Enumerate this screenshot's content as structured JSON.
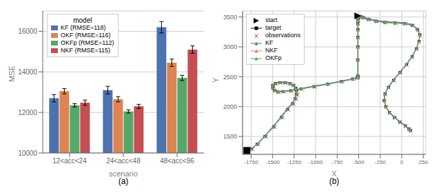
{
  "chart_data": [
    {
      "type": "bar",
      "xlabel": "scenario",
      "ylabel": "MSE",
      "categories": [
        "12<acc<24",
        "24<acc<48",
        "48<acc<96"
      ],
      "series": [
        {
          "name": "KF (RMSE=118)",
          "color": "#4C72B0",
          "values": [
            12700,
            13100,
            16200
          ],
          "errors": [
            180,
            190,
            280
          ]
        },
        {
          "name": "OKF (RMSE=116)",
          "color": "#DD8452",
          "values": [
            13050,
            12650,
            14450
          ],
          "errors": [
            130,
            130,
            180
          ]
        },
        {
          "name": "OKFp (RMSE=112)",
          "color": "#55A868",
          "values": [
            12350,
            12050,
            13700
          ],
          "errors": [
            80,
            80,
            130
          ]
        },
        {
          "name": "NKF (RMSE=115)",
          "color": "#C44E52",
          "values": [
            12480,
            12300,
            15100
          ],
          "errors": [
            130,
            100,
            180
          ]
        }
      ],
      "ylim": [
        10000,
        17000
      ],
      "yticks": [
        10000,
        12000,
        14000,
        16000
      ],
      "grid": true,
      "legend": "upper left",
      "legend_title": "model",
      "annotations": [
        "(a)"
      ]
    },
    {
      "type": "line",
      "xlabel": "X",
      "ylabel": "Y",
      "xlim": [
        -1850,
        280
      ],
      "ylim": [
        1200,
        3600
      ],
      "xticks": [
        -1750,
        -1500,
        -1250,
        -1000,
        -750,
        -500,
        -250,
        0,
        250
      ],
      "yticks": [
        1500,
        2000,
        2500,
        3000,
        3500
      ],
      "grid": true,
      "legend": "upper left",
      "annotations": [
        "(b)"
      ],
      "series": [
        {
          "name": "start",
          "type": "scatter",
          "marker": "triangle-right",
          "color": "#000000",
          "x": [
            -510
          ],
          "values": [
            3520
          ]
        },
        {
          "name": "target",
          "type": "line",
          "marker": "square",
          "line_style": "solid",
          "color": "#000000",
          "x": [
            -1800,
            -1750,
            -1680,
            -1590,
            -1490,
            -1400,
            -1330,
            -1270,
            -1240,
            -1225,
            -1225,
            -1235,
            -1260,
            -1300,
            -1360,
            -1420,
            -1470,
            -1500,
            -1500,
            -1480,
            -1440,
            -1380,
            -1290,
            -1170,
            -1020,
            -860,
            -700,
            -570,
            -520,
            -510,
            -510,
            -510,
            -510,
            -510,
            -510,
            -510,
            -510,
            -510,
            -500,
            -480,
            -450,
            -390,
            -300,
            -200,
            -80,
            30,
            120,
            180,
            210,
            200,
            170,
            120,
            55,
            -20,
            -95,
            -155,
            -195,
            -205,
            -185,
            -145,
            -85,
            -25,
            40,
            80,
            100
          ],
          "values": [
            1265,
            1290,
            1370,
            1500,
            1660,
            1820,
            1950,
            2050,
            2130,
            2200,
            2260,
            2310,
            2355,
            2385,
            2400,
            2400,
            2385,
            2355,
            2315,
            2270,
            2245,
            2250,
            2265,
            2295,
            2335,
            2375,
            2420,
            2460,
            2480,
            2490,
            2510,
            2780,
            3000,
            3160,
            3290,
            3390,
            3450,
            3490,
            3510,
            3505,
            3490,
            3460,
            3430,
            3410,
            3400,
            3390,
            3360,
            3290,
            3200,
            3090,
            2965,
            2835,
            2700,
            2570,
            2440,
            2320,
            2210,
            2100,
            1995,
            1900,
            1815,
            1740,
            1675,
            1625,
            1600
          ]
        },
        {
          "name": "observations",
          "type": "scatter",
          "marker": "x",
          "color": "#CC3333",
          "x": [
            -1790,
            -1735,
            -1665,
            -1575,
            -1475,
            -1385,
            -1315,
            -1255,
            -1225,
            -1210,
            -1215,
            -1225,
            -1250,
            -1290,
            -1350,
            -1410,
            -1460,
            -1490,
            -1490,
            -1470,
            -1430,
            -1370,
            -1280,
            -1160,
            -1010,
            -850,
            -690,
            -560,
            -515,
            -505,
            -510,
            -515,
            -510,
            -510,
            -505,
            -510,
            -505,
            -500,
            -490,
            -470,
            -440,
            -380,
            -290,
            -185,
            -65,
            40,
            130,
            190,
            215,
            205,
            175,
            125,
            60,
            -15,
            -90,
            -150,
            -190,
            -200,
            -180,
            -140,
            -80,
            -20,
            45,
            85,
            105
          ],
          "values": [
            1260,
            1285,
            1365,
            1495,
            1655,
            1815,
            1945,
            2045,
            2125,
            2195,
            2255,
            2305,
            2350,
            2380,
            2395,
            2395,
            2380,
            2350,
            2310,
            2265,
            2240,
            2245,
            2260,
            2290,
            2330,
            2370,
            2415,
            2455,
            2475,
            2485,
            2505,
            2775,
            2995,
            3155,
            3285,
            3385,
            3445,
            3485,
            3505,
            3500,
            3485,
            3455,
            3425,
            3405,
            3395,
            3385,
            3355,
            3285,
            3195,
            3085,
            2960,
            2830,
            2695,
            2565,
            2435,
            2315,
            2205,
            2095,
            1990,
            1895,
            1810,
            1735,
            1670,
            1620,
            1595
          ]
        },
        {
          "name": "KF",
          "type": "line",
          "marker": "triangle-up",
          "line_style": "solid",
          "color": "#4C72B0",
          "x": [
            -1800,
            -1750,
            -1680,
            -1590,
            -1490,
            -1400,
            -1330,
            -1270,
            -1240,
            -1225,
            -1225,
            -1235,
            -1260,
            -1300,
            -1360,
            -1420,
            -1470,
            -1500,
            -1500,
            -1480,
            -1440,
            -1380,
            -1290,
            -1170,
            -1020,
            -860,
            -700,
            -570,
            -520,
            -510,
            -510,
            -510,
            -510,
            -510,
            -510,
            -510,
            -510,
            -510,
            -500,
            -480,
            -450,
            -390,
            -300,
            -200,
            -80,
            30,
            120,
            180,
            210,
            200,
            170,
            120,
            55,
            -20,
            -95,
            -155,
            -195,
            -205,
            -185,
            -145,
            -85,
            -25,
            40,
            80,
            100
          ],
          "values": [
            1265,
            1295,
            1380,
            1515,
            1680,
            1840,
            1970,
            2065,
            2145,
            2215,
            2275,
            2325,
            2365,
            2395,
            2410,
            2410,
            2395,
            2365,
            2325,
            2280,
            2255,
            2260,
            2275,
            2305,
            2345,
            2385,
            2430,
            2468,
            2490,
            2500,
            2520,
            2795,
            3015,
            3175,
            3305,
            3405,
            3465,
            3505,
            3525,
            3520,
            3505,
            3475,
            3445,
            3425,
            3415,
            3405,
            3375,
            3305,
            3215,
            3105,
            2980,
            2850,
            2715,
            2585,
            2455,
            2335,
            2225,
            2115,
            2010,
            1915,
            1830,
            1755,
            1690,
            1640,
            1615
          ]
        },
        {
          "name": "NKF",
          "type": "line",
          "marker": "triangle-up",
          "line_style": "solid",
          "color": "#DD8452",
          "x": [
            -1800,
            -1750,
            -1680,
            -1590,
            -1490,
            -1400,
            -1330,
            -1270,
            -1240,
            -1225,
            -1225,
            -1235,
            -1260,
            -1300,
            -1360,
            -1420,
            -1470,
            -1500,
            -1500,
            -1480,
            -1440,
            -1380,
            -1290,
            -1170,
            -1020,
            -860,
            -700,
            -570,
            -520,
            -510,
            -510,
            -510,
            -510,
            -510,
            -510,
            -510,
            -510,
            -510,
            -500,
            -480,
            -450,
            -390,
            -300,
            -200,
            -80,
            30,
            120,
            180,
            210,
            200,
            170,
            120,
            55,
            -20,
            -95,
            -155,
            -195,
            -205,
            -185,
            -145,
            -85,
            -25,
            40,
            80,
            100
          ],
          "values": [
            1266,
            1292,
            1372,
            1502,
            1662,
            1822,
            1952,
            2052,
            2132,
            2202,
            2262,
            2312,
            2357,
            2387,
            2402,
            2402,
            2387,
            2357,
            2317,
            2272,
            2247,
            2252,
            2267,
            2297,
            2337,
            2377,
            2422,
            2462,
            2482,
            2492,
            2512,
            2782,
            3002,
            3162,
            3292,
            3392,
            3452,
            3492,
            3512,
            3507,
            3492,
            3462,
            3432,
            3412,
            3402,
            3392,
            3362,
            3292,
            3202,
            3092,
            2967,
            2837,
            2702,
            2572,
            2442,
            2322,
            2212,
            2102,
            1997,
            1902,
            1817,
            1742,
            1677,
            1627,
            1602
          ]
        },
        {
          "name": "OKFp",
          "type": "line",
          "marker": "triangle-up",
          "line_style": "solid",
          "color": "#55A868",
          "x": [
            -1800,
            -1750,
            -1680,
            -1590,
            -1490,
            -1400,
            -1330,
            -1270,
            -1240,
            -1225,
            -1225,
            -1235,
            -1260,
            -1300,
            -1360,
            -1420,
            -1470,
            -1500,
            -1500,
            -1480,
            -1440,
            -1380,
            -1290,
            -1170,
            -1020,
            -860,
            -700,
            -570,
            -520,
            -510,
            -510,
            -510,
            -510,
            -510,
            -510,
            -510,
            -510,
            -510,
            -500,
            -480,
            -450,
            -390,
            -300,
            -200,
            -80,
            30,
            120,
            180,
            210,
            200,
            170,
            120,
            55,
            -20,
            -95,
            -155,
            -195,
            -205,
            -185,
            -145,
            -85,
            -25,
            40,
            80,
            100
          ],
          "values": [
            1265,
            1291,
            1371,
            1501,
            1661,
            1821,
            1951,
            2051,
            2131,
            2201,
            2261,
            2311,
            2356,
            2386,
            2401,
            2401,
            2386,
            2356,
            2316,
            2271,
            2246,
            2251,
            2266,
            2296,
            2336,
            2376,
            2421,
            2461,
            2481,
            2491,
            2511,
            2781,
            3001,
            3161,
            3291,
            3391,
            3451,
            3491,
            3511,
            3506,
            3491,
            3461,
            3431,
            3411,
            3401,
            3391,
            3361,
            3291,
            3201,
            3091,
            2966,
            2836,
            2701,
            2571,
            2441,
            2321,
            2211,
            2101,
            1996,
            1901,
            1816,
            1741,
            1676,
            1626,
            1601
          ]
        },
        {
          "type": "scatter",
          "marker": "square",
          "color": "#000000",
          "x": [
            -1800
          ],
          "values": [
            1265
          ]
        }
      ]
    }
  ]
}
